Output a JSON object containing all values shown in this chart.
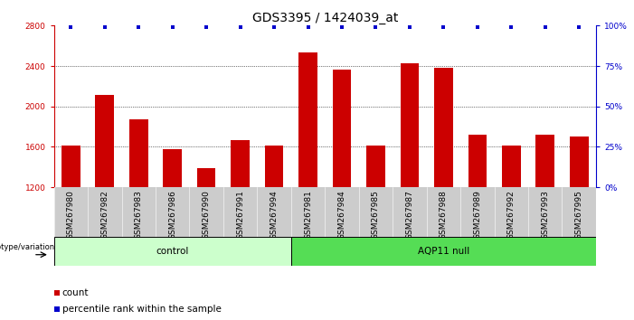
{
  "title": "GDS3395 / 1424039_at",
  "samples": [
    "GSM267980",
    "GSM267982",
    "GSM267983",
    "GSM267986",
    "GSM267990",
    "GSM267991",
    "GSM267994",
    "GSM267981",
    "GSM267984",
    "GSM267985",
    "GSM267987",
    "GSM267988",
    "GSM267989",
    "GSM267992",
    "GSM267993",
    "GSM267995"
  ],
  "counts": [
    1610,
    2110,
    1870,
    1580,
    1390,
    1670,
    1610,
    2530,
    2360,
    1610,
    2430,
    2380,
    1720,
    1610,
    1720,
    1700
  ],
  "bar_color": "#cc0000",
  "dot_color": "#0000cc",
  "ylim_left": [
    1200,
    2800
  ],
  "ylim_right": [
    0,
    100
  ],
  "yticks_left": [
    1200,
    1600,
    2000,
    2400,
    2800
  ],
  "yticks_right": [
    0,
    25,
    50,
    75,
    100
  ],
  "ytick_labels_right": [
    "0%",
    "25%",
    "50%",
    "75%",
    "100%"
  ],
  "grid_values": [
    1600,
    2000,
    2400
  ],
  "n_control": 7,
  "n_aqp11": 9,
  "control_label": "control",
  "aqp11_label": "AQP11 null",
  "genotype_label": "genotype/variation",
  "legend_count_label": "count",
  "legend_pct_label": "percentile rank within the sample",
  "control_color": "#ccffcc",
  "aqp11_color": "#55dd55",
  "tick_area_color": "#cccccc",
  "title_fontsize": 10,
  "tick_fontsize": 6.5,
  "axis_label_fontsize": 7.5,
  "legend_fontsize": 7.5
}
